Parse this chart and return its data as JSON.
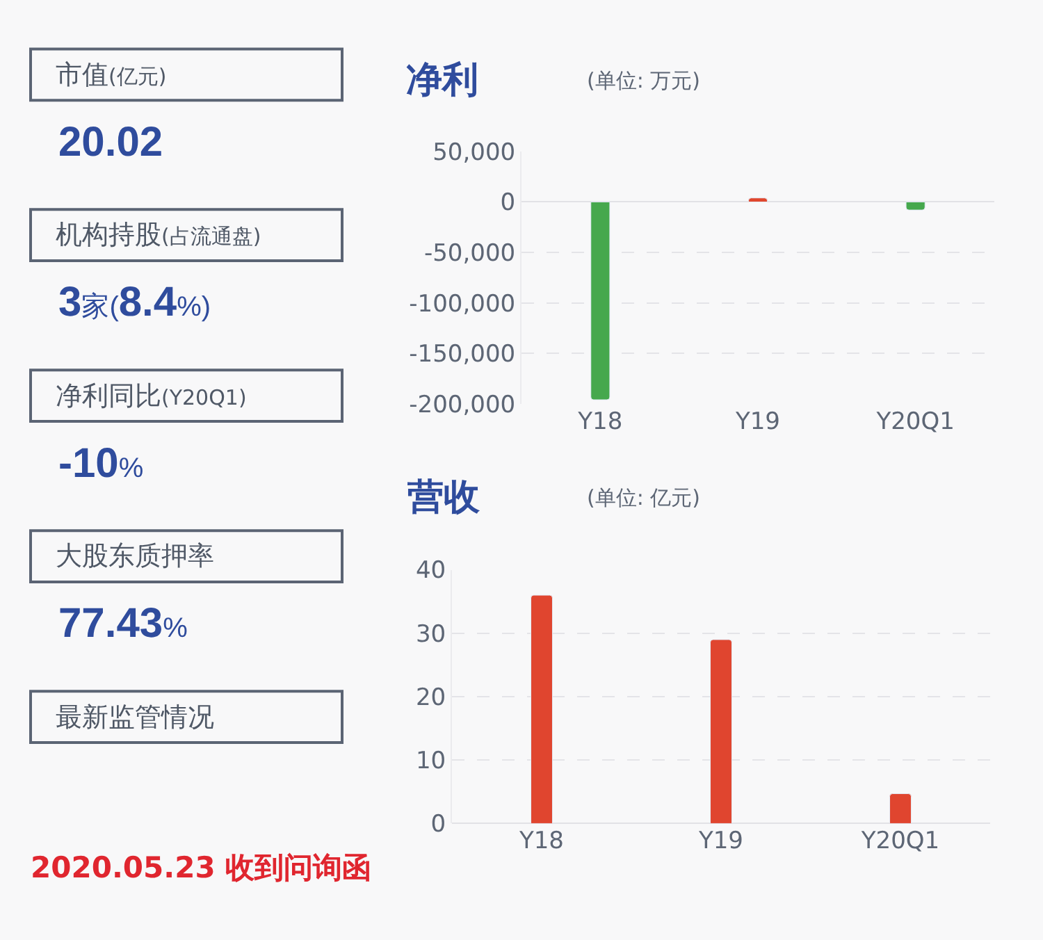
{
  "chart_data": [
    {
      "type": "other",
      "annotations": [
        "市值(亿元)",
        "20.02",
        "机构持股(占流通盘)",
        "3家(8.4%)",
        "净利同比(Y20Q1)",
        "-10%",
        "大股东质押率",
        "77.43%",
        "最新监管情况",
        "2020.05.23 收到问询函"
      ]
    },
    {
      "type": "bar",
      "title": "净利",
      "subtitle": "(单位: 万元)",
      "categories": [
        "Y18",
        "Y19",
        "Y20Q1"
      ],
      "values": [
        -196000,
        4000,
        -8000
      ],
      "colors": [
        "#46a84d",
        "#e0472d",
        "#46a84d"
      ],
      "ylim": [
        -200000,
        50000
      ],
      "yticks": [
        {
          "value": -200000,
          "label": "-200,000"
        },
        {
          "value": -150000,
          "label": "-150,000"
        },
        {
          "value": -100000,
          "label": "-100,000"
        },
        {
          "value": -50000,
          "label": "-50,000"
        },
        0,
        {
          "value": 50000,
          "label": "50,000"
        }
      ],
      "grid": "y"
    },
    {
      "type": "bar",
      "title": "营收",
      "subtitle": "(单位: 亿元)",
      "categories": [
        "Y18",
        "Y19",
        "Y20Q1"
      ],
      "values": [
        36,
        29,
        4.7
      ],
      "color": "#e0452f",
      "ylim": [
        0,
        40
      ],
      "yticks": [
        0,
        10,
        20,
        30,
        40
      ],
      "grid": "y"
    }
  ]
}
